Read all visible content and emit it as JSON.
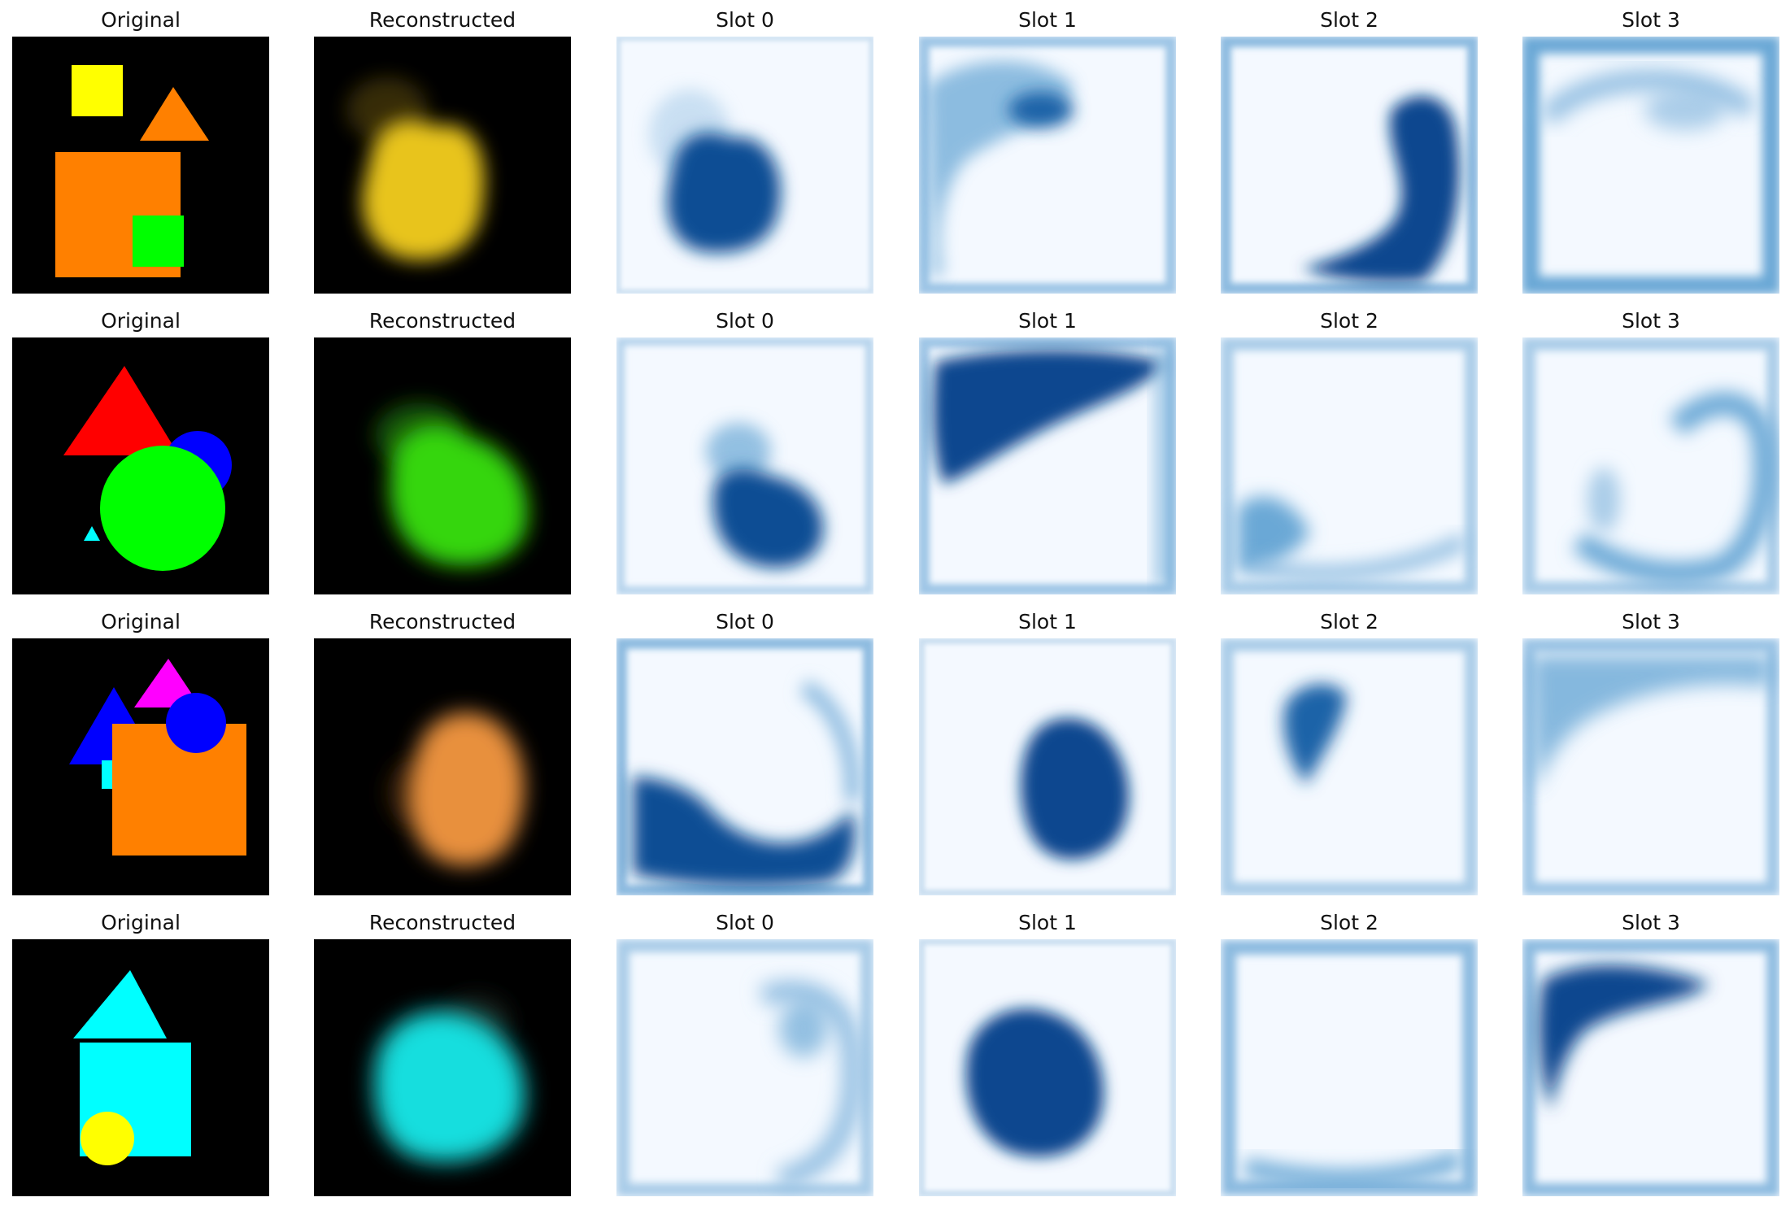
{
  "labels": {
    "original": "Original",
    "reconstructed": "Reconstructed",
    "slot0": "Slot 0",
    "slot1": "Slot 1",
    "slot2": "Slot 2",
    "slot3": "Slot 3"
  },
  "colors": {
    "scene_background": "#000000",
    "mask_low": "#f4f9ff",
    "mask_edge": "#c9def0",
    "mask_mid": "#6aa8d6",
    "mask_high": "#08478f"
  },
  "rows": [
    {
      "original_shapes": [
        "yellow square",
        "orange triangle",
        "orange square",
        "green square"
      ],
      "reconstruction_color": "#e8c41a"
    },
    {
      "original_shapes": [
        "red triangle",
        "blue circle",
        "green circle",
        "cyan triangle"
      ],
      "reconstruction_color": "#36d60f"
    },
    {
      "original_shapes": [
        "magenta triangle",
        "blue triangle",
        "blue circle",
        "orange square",
        "cyan square"
      ],
      "reconstruction_color": "#e8903d"
    },
    {
      "original_shapes": [
        "cyan triangle",
        "cyan square",
        "yellow circle"
      ],
      "reconstruction_color": "#18dede"
    }
  ]
}
